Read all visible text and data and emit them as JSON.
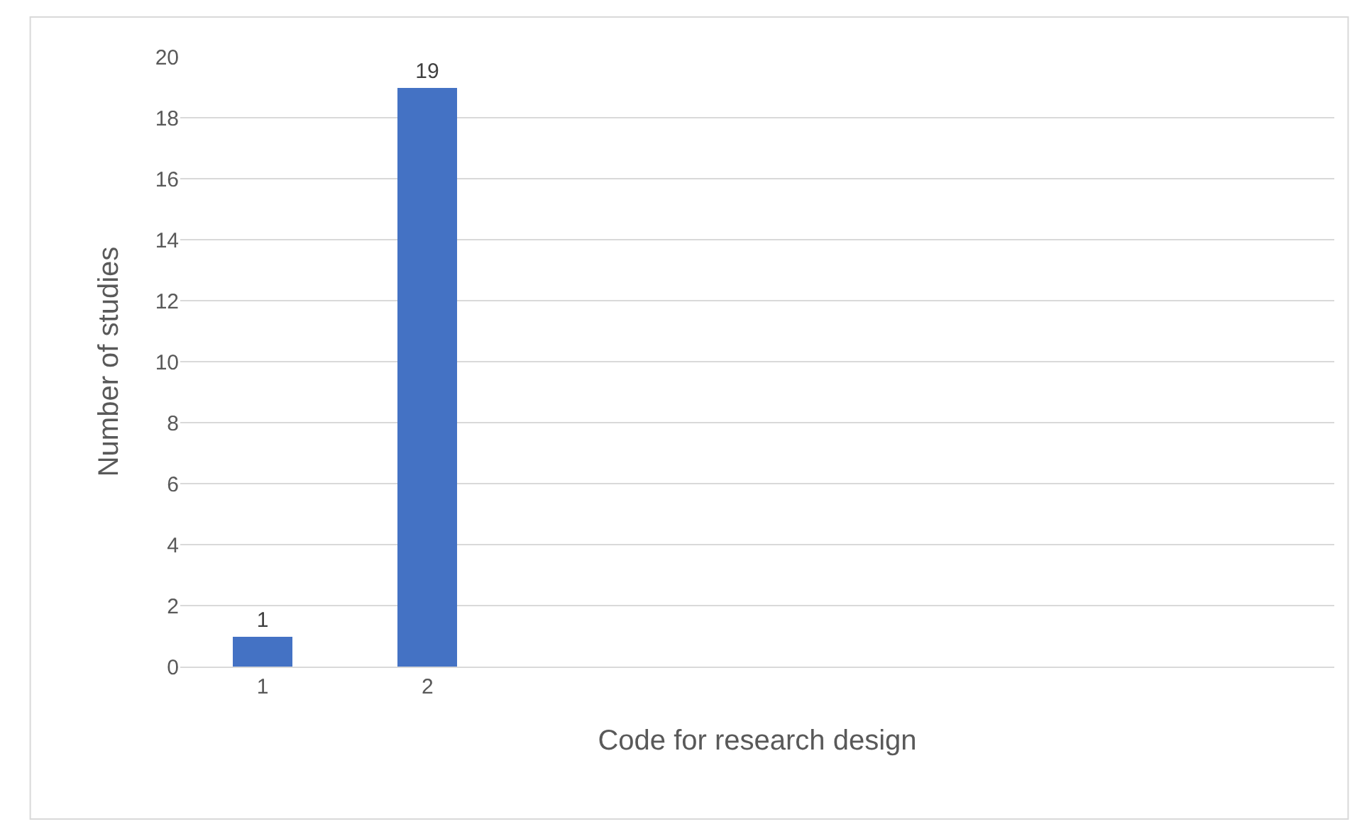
{
  "chart_data": {
    "type": "bar",
    "xlabel": "Code for research design",
    "ylabel": "Number of studies",
    "categories": [
      "1",
      "2",
      null,
      null,
      null,
      null,
      null
    ],
    "values": [
      1,
      19,
      null,
      null,
      null,
      null,
      null
    ],
    "color": "#4472c4",
    "ylim": [
      0,
      20
    ],
    "yticks": [
      0,
      2,
      4,
      6,
      8,
      10,
      12,
      14,
      16,
      18,
      20
    ],
    "grid": "y",
    "data_labels": true
  }
}
